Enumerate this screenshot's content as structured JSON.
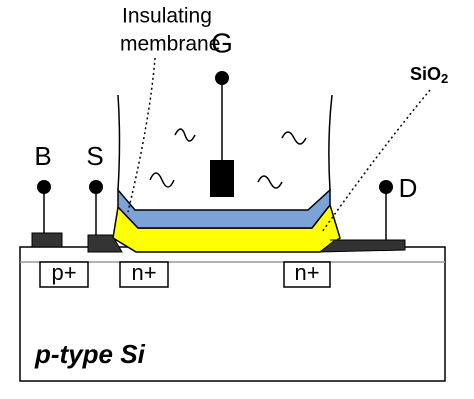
{
  "membrane_label": [
    "Insulating",
    "membrane"
  ],
  "gate": "G",
  "oxide": {
    "base": "SiO",
    "sub": "2"
  },
  "terminals": {
    "body": "B",
    "source": "S",
    "drain": "D"
  },
  "regions": [
    "p+",
    "n+",
    "n+"
  ],
  "substrate": "p-type Si"
}
